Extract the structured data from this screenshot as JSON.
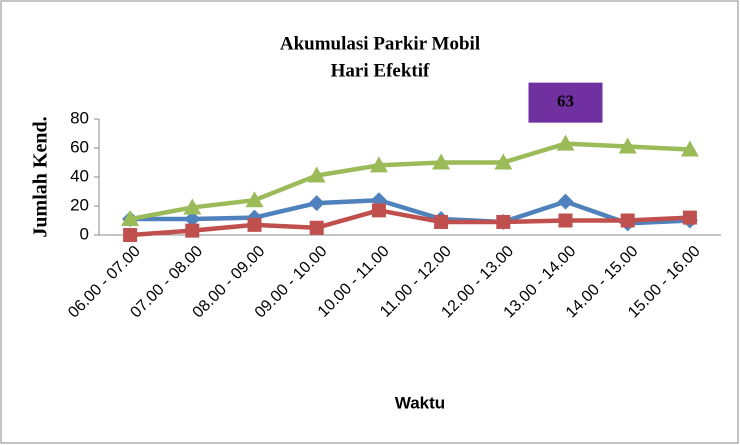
{
  "chart_data": {
    "type": "line",
    "title": [
      "Akumulasi Parkir Mobil",
      "Hari Efektif"
    ],
    "xlabel": "Waktu",
    "ylabel": "Jumlah Kend.",
    "categories": [
      "06.00 - 07.00",
      "07.00 - 08.00",
      "08.00 - 09.00",
      "09.00 - 10.00",
      "10.00 - 11.00",
      "11.00 - 12.00",
      "12.00 - 13.00",
      "13.00 - 14.00",
      "14.00 - 15.00",
      "15.00 - 16.00"
    ],
    "series": [
      {
        "color": "#4f81bd",
        "marker": "diamond",
        "values": [
          11,
          11,
          12,
          22,
          24,
          11,
          9,
          23,
          8,
          10
        ]
      },
      {
        "color": "#c0504d",
        "marker": "square",
        "values": [
          0,
          3,
          7,
          5,
          17,
          9,
          9,
          10,
          10,
          12
        ]
      },
      {
        "color": "#9bbb59",
        "marker": "triangle",
        "values": [
          11,
          19,
          24,
          41,
          48,
          50,
          50,
          63,
          61,
          59
        ],
        "value_labels": [
          null,
          null,
          null,
          null,
          null,
          null,
          null,
          "63",
          null,
          null
        ],
        "label_color": "#7030a0"
      }
    ],
    "ylim": [
      0,
      80
    ],
    "yticks": [
      0,
      20,
      40,
      60,
      80
    ],
    "grid": false
  }
}
